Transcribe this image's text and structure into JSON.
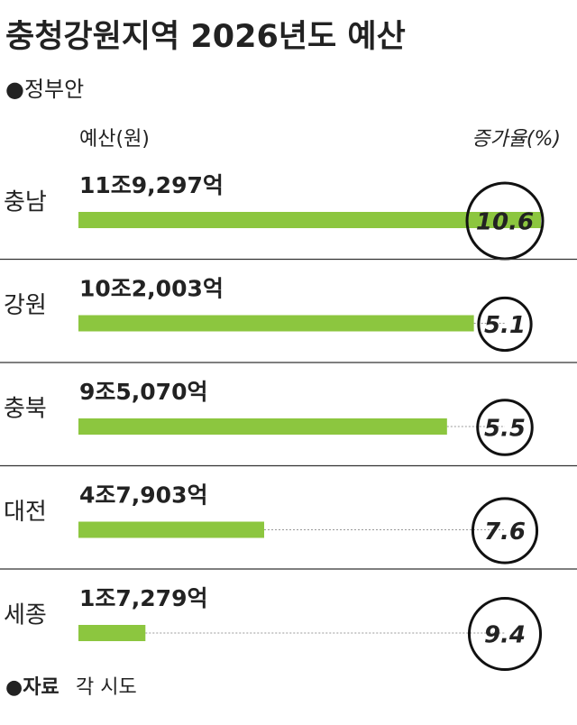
{
  "chart_data": {
    "type": "bar",
    "title": "충청강원지역 2026년도 예산",
    "subtitle": "●정부안",
    "categories": [
      "충남",
      "강원",
      "충북",
      "대전",
      "세종"
    ],
    "series": [
      {
        "name": "예산(원)",
        "color": "#8cc63f",
        "values": [
          119297,
          102003,
          95070,
          47903,
          17279
        ],
        "value_labels": [
          "11조9,297억",
          "10조2,003억",
          "9조5,070억",
          "4조7,903억",
          "1조7,279억"
        ]
      },
      {
        "name": "증가율(%)",
        "color": "#111111",
        "values": [
          10.6,
          5.1,
          5.5,
          7.6,
          9.4
        ]
      }
    ],
    "source_label": "●자료",
    "source": "각 시도"
  }
}
